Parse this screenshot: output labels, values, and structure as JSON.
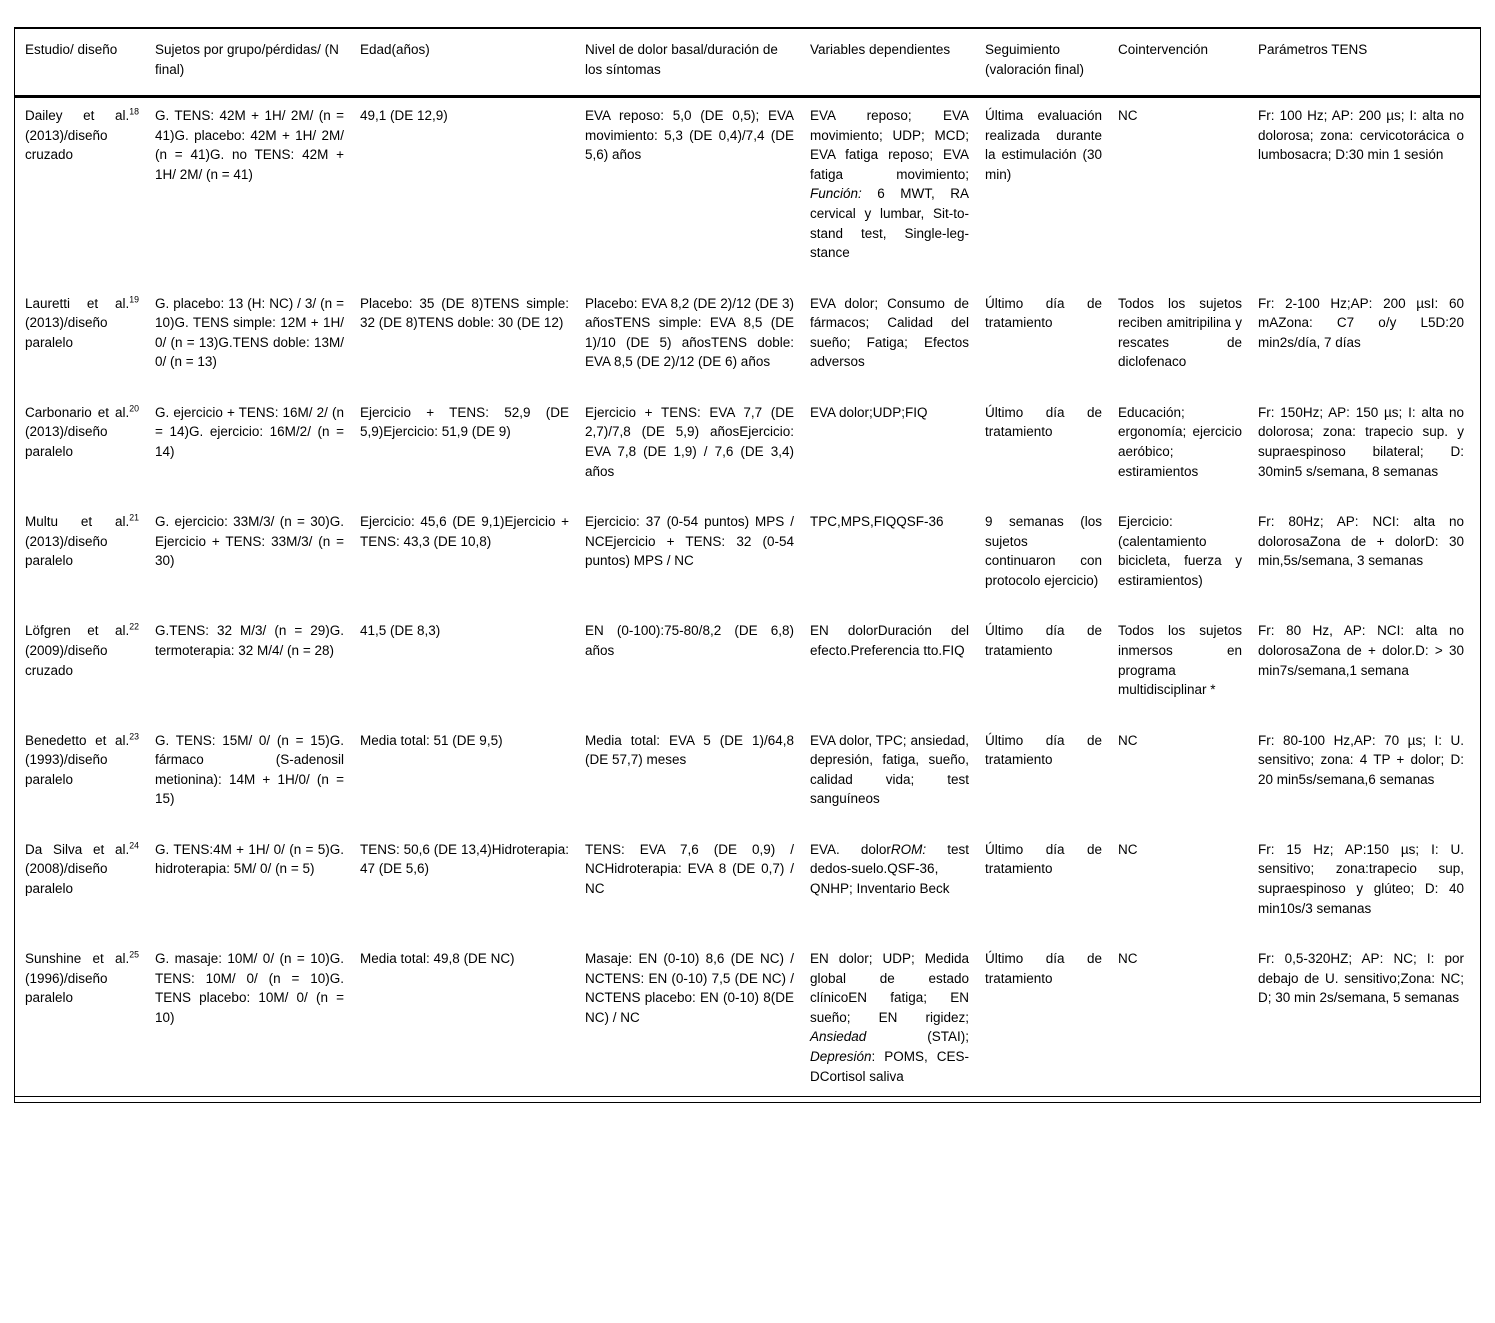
{
  "table": {
    "columns": [
      {
        "key": "study",
        "label": "Estudio/ diseño"
      },
      {
        "key": "subjects",
        "label": "Sujetos por grupo/pérdidas/ (N final)"
      },
      {
        "key": "age",
        "label": "Edad(años)"
      },
      {
        "key": "pain",
        "label": "Nivel de dolor basal/duración de los síntomas"
      },
      {
        "key": "variables",
        "label": "Variables dependientes"
      },
      {
        "key": "followup",
        "label": "Seguimiento (valoración final)"
      },
      {
        "key": "cointervention",
        "label": "Cointervención"
      },
      {
        "key": "tens",
        "label": "Parámetros TENS"
      }
    ],
    "rows": [
      {
        "cells": [
          [
            {
              "t": "Dailey et al."
            },
            {
              "t": "18",
              "sup": true
            },
            {
              "t": " (2013)/diseño cruzado"
            }
          ],
          "G. TENS: 42M + 1H/ 2M/ (n = 41)G. placebo: 42M + 1H/ 2M/ (n = 41)G. no TENS: 42M + 1H/ 2M/ (n = 41)",
          "49,1 (DE 12,9)",
          "EVA reposo: 5,0 (DE 0,5); EVA movimiento: 5,3 (DE 0,4)/7,4 (DE 5,6) años",
          [
            {
              "t": "EVA reposo; EVA movimiento; UDP; MCD; EVA fatiga reposo; EVA fatiga movimiento; "
            },
            {
              "t": "Función:",
              "i": true
            },
            {
              "t": " 6 MWT, RA cervical y lumbar, Sit-to-stand test, Single-leg-stance"
            }
          ],
          "Última evaluación realizada durante la estimulación (30 min)",
          "NC",
          "Fr: 100 Hz; AP: 200 µs; I: alta no dolorosa; zona: cervicotorácica o lumbosacra; D:30 min 1 sesión"
        ]
      },
      {
        "cells": [
          [
            {
              "t": "Lauretti et al."
            },
            {
              "t": "19",
              "sup": true
            },
            {
              "t": " (2013)/diseño paralelo"
            }
          ],
          "G. placebo: 13 (H: NC) / 3/ (n = 10)G. TENS simple: 12M + 1H/ 0/ (n = 13)G.TENS doble: 13M/ 0/ (n = 13)",
          "Placebo: 35 (DE 8)TENS simple: 32 (DE 8)TENS doble: 30 (DE 12)",
          "Placebo: EVA 8,2 (DE 2)/12 (DE 3) añosTENS simple: EVA 8,5 (DE 1)/10 (DE 5) añosTENS doble: EVA 8,5 (DE 2)/12 (DE 6) años",
          "EVA dolor; Consumo de fármacos; Calidad del sueño; Fatiga; Efectos adversos",
          "Último día de tratamiento",
          "Todos los sujetos reciben amitripilina y rescates de diclofenaco",
          "Fr: 2-100 Hz;AP: 200 µsI: 60 mAZona: C7 o/y L5D:20 min2s/día, 7 días"
        ]
      },
      {
        "cells": [
          [
            {
              "t": "Carbonario et al."
            },
            {
              "t": "20",
              "sup": true
            },
            {
              "t": " (2013)/diseño paralelo"
            }
          ],
          "G. ejercicio + TENS: 16M/ 2/ (n = 14)G. ejercicio: 16M/2/ (n = 14)",
          "Ejercicio + TENS: 52,9 (DE 5,9)Ejercicio: 51,9 (DE 9)",
          "Ejercicio + TENS: EVA 7,7 (DE 2,7)/7,8 (DE 5,9) añosEjercicio: EVA 7,8 (DE 1,9) / 7,6 (DE 3,4) años",
          "EVA dolor;UDP;FIQ",
          "Último día de tratamiento",
          "Educación; ergonomía; ejercicio aeróbico; estiramientos",
          "Fr: 150Hz; AP: 150 µs; I: alta no dolorosa; zona: trapecio sup. y supraespinoso bilateral; D: 30min5 s/semana, 8 semanas"
        ]
      },
      {
        "cells": [
          [
            {
              "t": "Multu et al."
            },
            {
              "t": "21",
              "sup": true
            },
            {
              "t": " (2013)/diseño paralelo"
            }
          ],
          "G. ejercicio: 33M/3/ (n = 30)G. Ejercicio + TENS: 33M/3/ (n = 30)",
          "Ejercicio: 45,6 (DE 9,1)Ejercicio + TENS: 43,3 (DE 10,8)",
          "Ejercicio: 37 (0-54 puntos) MPS / NCEjercicio + TENS: 32 (0-54 puntos) MPS / NC",
          "TPC,MPS,FIQQSF-36",
          "9 semanas (los sujetos continuaron con protocolo ejercicio)",
          "Ejercicio: (calentamiento bicicleta, fuerza y estiramientos)",
          "Fr: 80Hz; AP: NCI: alta no dolorosaZona de + dolorD: 30 min,5s/semana, 3 semanas"
        ]
      },
      {
        "cells": [
          [
            {
              "t": "Löfgren et al."
            },
            {
              "t": "22",
              "sup": true
            },
            {
              "t": " (2009)/diseño cruzado"
            }
          ],
          "G.TENS: 32 M/3/ (n = 29)G. termoterapia: 32 M/4/ (n = 28)",
          "41,5 (DE 8,3)",
          "EN (0-100):75-80/8,2 (DE 6,8) años",
          "EN dolorDuración del efecto.Preferencia tto.FIQ",
          "Último día de tratamiento",
          "Todos los sujetos inmersos en programa multidisciplinar *",
          "Fr: 80 Hz, AP: NCI: alta no dolorosaZona de + dolor.D: > 30 min7s/semana,1 semana"
        ]
      },
      {
        "cells": [
          [
            {
              "t": "Benedetto et al."
            },
            {
              "t": "23",
              "sup": true
            },
            {
              "t": " (1993)/diseño paralelo"
            }
          ],
          "G. TENS: 15M/ 0/ (n = 15)G. fármaco (S-adenosil metionina): 14M + 1H/0/ (n = 15)",
          "Media total: 51 (DE 9,5)",
          "Media total: EVA 5 (DE 1)/64,8 (DE 57,7) meses",
          "EVA dolor, TPC; ansiedad, depresión, fatiga, sueño, calidad vida; test sanguíneos",
          "Último día de tratamiento",
          "NC",
          "Fr: 80-100 Hz,AP: 70 µs; I: U. sensitivo; zona: 4 TP + dolor; D: 20 min5s/semana,6 semanas"
        ]
      },
      {
        "cells": [
          [
            {
              "t": "Da Silva et al."
            },
            {
              "t": "24",
              "sup": true
            },
            {
              "t": " (2008)/diseño paralelo"
            }
          ],
          "G. TENS:4M + 1H/ 0/ (n = 5)G. hidroterapia: 5M/ 0/ (n = 5)",
          "TENS: 50,6 (DE 13,4)Hidroterapia: 47 (DE 5,6)",
          "TENS: EVA 7,6 (DE 0,9) / NCHidroterapia: EVA 8 (DE 0,7) / NC",
          [
            {
              "t": "EVA. dolor"
            },
            {
              "t": "ROM:",
              "i": true
            },
            {
              "t": " test dedos-suelo.QSF-36, QNHP; Inventario Beck"
            }
          ],
          "Último día de tratamiento",
          "NC",
          "Fr: 15 Hz; AP:150 µs; I: U. sensitivo; zona:trapecio sup, supraespinoso y glúteo; D: 40 min10s/3 semanas"
        ]
      },
      {
        "cells": [
          [
            {
              "t": "Sunshine et al."
            },
            {
              "t": "25",
              "sup": true
            },
            {
              "t": " (1996)/diseño paralelo"
            }
          ],
          "G. masaje: 10M/ 0/ (n = 10)G. TENS: 10M/ 0/ (n = 10)G. TENS placebo: 10M/ 0/ (n = 10)",
          "Media total: 49,8 (DE NC)",
          "Masaje: EN (0-10) 8,6 (DE NC) / NCTENS: EN (0-10) 7,5 (DE NC) / NCTENS placebo: EN (0-10) 8(DE NC) / NC",
          [
            {
              "t": "EN dolor; UDP; Medida global de estado clínicoEN fatiga; EN sueño; EN rigidez; "
            },
            {
              "t": "Ansiedad",
              "i": true
            },
            {
              "t": " (STAI); "
            },
            {
              "t": "Depresión",
              "i": true
            },
            {
              "t": ": POMS, CES-DCortisol saliva"
            }
          ],
          "Último día de tratamiento",
          "NC",
          "Fr: 0,5-320HZ; AP: NC; I: por debajo de U. sensitivo;Zona: NC; D; 30 min 2s/semana, 5 semanas"
        ]
      }
    ]
  }
}
